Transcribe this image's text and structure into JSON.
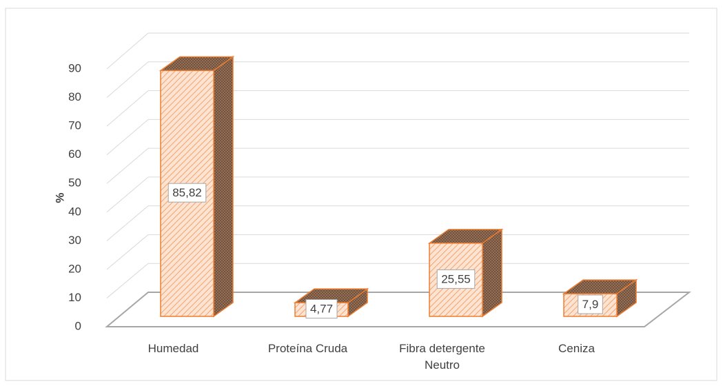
{
  "chart_data": {
    "type": "bar3d",
    "ylabel": "%",
    "categories": [
      "Humedad",
      "Proteína Cruda",
      "Fibra detergente Neutro",
      "Ceniza"
    ],
    "values": [
      85.82,
      4.77,
      25.55,
      7.9
    ],
    "value_labels": [
      "85,82",
      "4,77",
      "25,55",
      "7,9"
    ],
    "color": "#ed7d31",
    "ylim": [
      0,
      90
    ],
    "yticks": [
      0,
      10,
      20,
      30,
      40,
      50,
      60,
      70,
      80,
      90
    ],
    "grid": true
  }
}
